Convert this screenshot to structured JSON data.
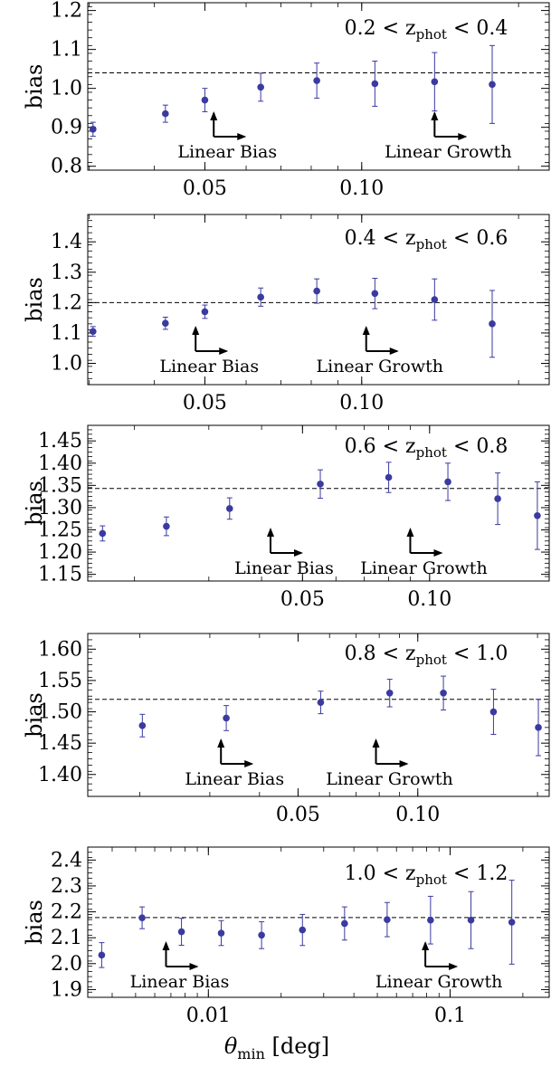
{
  "chart_data": [
    {
      "type": "scatter",
      "ylabel": "bias",
      "z_range": {
        "prefix": "0.2 < z",
        "sub": "phot",
        "suffix": " < 0.4"
      },
      "xscale": "log",
      "xlim": [
        0.0298,
        0.229
      ],
      "ylim": [
        0.79,
        1.22
      ],
      "yticks": [
        0.8,
        0.9,
        1.0,
        1.1,
        1.2
      ],
      "ytick_labels": [
        "0.8",
        "0.9",
        "1.0",
        "1.1",
        "1.2"
      ],
      "xticks": [
        0.05,
        0.1
      ],
      "xtick_labels": [
        "0.05",
        "0.10"
      ],
      "reference_line": 1.04,
      "series": [
        {
          "x": [
            0.0305,
            0.042,
            0.05,
            0.064,
            0.082,
            0.106,
            0.138,
            0.178
          ],
          "y": [
            0.895,
            0.935,
            0.97,
            1.003,
            1.02,
            1.012,
            1.017,
            1.01
          ],
          "err": [
            0.018,
            0.022,
            0.03,
            0.036,
            0.045,
            0.058,
            0.075,
            0.1
          ]
        }
      ],
      "annotations": [
        {
          "text": "Linear Bias",
          "x": 0.052
        },
        {
          "text": "Linear Growth",
          "x": 0.138
        }
      ]
    },
    {
      "type": "scatter",
      "ylabel": "bias",
      "z_range": {
        "prefix": "0.4 < z",
        "sub": "phot",
        "suffix": " < 0.6"
      },
      "xscale": "log",
      "xlim": [
        0.0298,
        0.229
      ],
      "ylim": [
        0.93,
        1.49
      ],
      "yticks": [
        1.0,
        1.1,
        1.2,
        1.3,
        1.4
      ],
      "ytick_labels": [
        "1.0",
        "1.1",
        "1.2",
        "1.3",
        "1.4"
      ],
      "xticks": [
        0.05,
        0.1
      ],
      "xtick_labels": [
        "0.05",
        "0.10"
      ],
      "reference_line": 1.2,
      "series": [
        {
          "x": [
            0.0305,
            0.042,
            0.05,
            0.064,
            0.082,
            0.106,
            0.138,
            0.178
          ],
          "y": [
            1.105,
            1.132,
            1.17,
            1.218,
            1.238,
            1.23,
            1.21,
            1.13
          ],
          "err": [
            0.016,
            0.02,
            0.022,
            0.03,
            0.04,
            0.05,
            0.068,
            0.11
          ]
        }
      ],
      "annotations": [
        {
          "text": "Linear Bias",
          "x": 0.048
        },
        {
          "text": "Linear Growth",
          "x": 0.102
        }
      ]
    },
    {
      "type": "scatter",
      "ylabel": "bias",
      "z_range": {
        "prefix": "0.6 < z",
        "sub": "phot",
        "suffix": " < 0.8"
      },
      "xscale": "log",
      "xlim": [
        0.0155,
        0.192
      ],
      "ylim": [
        1.135,
        1.485
      ],
      "yticks": [
        1.15,
        1.2,
        1.25,
        1.3,
        1.35,
        1.4,
        1.45
      ],
      "ytick_labels": [
        "1.15",
        "1.20",
        "1.25",
        "1.30",
        "1.35",
        "1.40",
        "1.45"
      ],
      "xticks": [
        0.05,
        0.1
      ],
      "xtick_labels": [
        "0.05",
        "0.10"
      ],
      "reference_line": 1.343,
      "series": [
        {
          "x": [
            0.0168,
            0.0238,
            0.0336,
            0.0551,
            0.08,
            0.1105,
            0.145,
            0.18
          ],
          "y": [
            1.242,
            1.258,
            1.298,
            1.353,
            1.368,
            1.358,
            1.32,
            1.282
          ],
          "err": [
            0.017,
            0.021,
            0.024,
            0.032,
            0.034,
            0.042,
            0.058,
            0.076
          ]
        }
      ],
      "annotations": [
        {
          "text": "Linear Bias",
          "x": 0.042
        },
        {
          "text": "Linear Growth",
          "x": 0.09
        }
      ]
    },
    {
      "type": "scatter",
      "ylabel": "bias",
      "z_range": {
        "prefix": "0.8 < z",
        "sub": "phot",
        "suffix": " < 1.0"
      },
      "xscale": "log",
      "xlim": [
        0.0148,
        0.214
      ],
      "ylim": [
        1.365,
        1.625
      ],
      "yticks": [
        1.4,
        1.45,
        1.5,
        1.55,
        1.6
      ],
      "ytick_labels": [
        "1.40",
        "1.45",
        "1.50",
        "1.55",
        "1.60"
      ],
      "xticks": [
        0.05,
        0.1
      ],
      "xtick_labels": [
        "0.05",
        "0.10"
      ],
      "reference_line": 1.52,
      "series": [
        {
          "x": [
            0.0203,
            0.033,
            0.057,
            0.085,
            0.116,
            0.155,
            0.201
          ],
          "y": [
            1.478,
            1.49,
            1.515,
            1.53,
            1.53,
            1.5,
            1.475
          ],
          "err": [
            0.018,
            0.02,
            0.018,
            0.022,
            0.027,
            0.036,
            0.045
          ]
        }
      ],
      "annotations": [
        {
          "text": "Linear Bias",
          "x": 0.032
        },
        {
          "text": "Linear Growth",
          "x": 0.0785
        }
      ]
    },
    {
      "type": "scatter",
      "ylabel": "bias",
      "z_range": {
        "prefix": "1.0 < z",
        "sub": "phot",
        "suffix": " < 1.2"
      },
      "xscale": "log",
      "xlim": [
        0.00317,
        0.257
      ],
      "ylim": [
        1.87,
        2.45
      ],
      "yticks": [
        1.9,
        2.0,
        2.1,
        2.2,
        2.3,
        2.4
      ],
      "ytick_labels": [
        "1.9",
        "2.0",
        "2.1",
        "2.2",
        "2.3",
        "2.4"
      ],
      "xticks": [
        0.01,
        0.1
      ],
      "xtick_labels": [
        "0.01",
        "0.1"
      ],
      "reference_line": 2.178,
      "series": [
        {
          "x": [
            0.00362,
            0.00532,
            0.00774,
            0.0113,
            0.0166,
            0.0245,
            0.0366,
            0.0549,
            0.083,
            0.122,
            0.18
          ],
          "y": [
            2.033,
            2.177,
            2.123,
            2.118,
            2.11,
            2.13,
            2.155,
            2.17,
            2.168,
            2.168,
            2.16
          ],
          "err": [
            0.048,
            0.042,
            0.052,
            0.048,
            0.052,
            0.06,
            0.064,
            0.066,
            0.092,
            0.11,
            0.162
          ]
        }
      ],
      "annotations": [
        {
          "text": "Linear Bias",
          "x": 0.00668
        },
        {
          "text": "Linear Growth",
          "x": 0.079
        }
      ]
    }
  ],
  "xlabel": {
    "symbol": "θ",
    "sub": "min",
    "unit": " [deg]"
  },
  "colors": {
    "points": "#3a3aa0",
    "axes": "#000000",
    "reference": "#000000"
  }
}
